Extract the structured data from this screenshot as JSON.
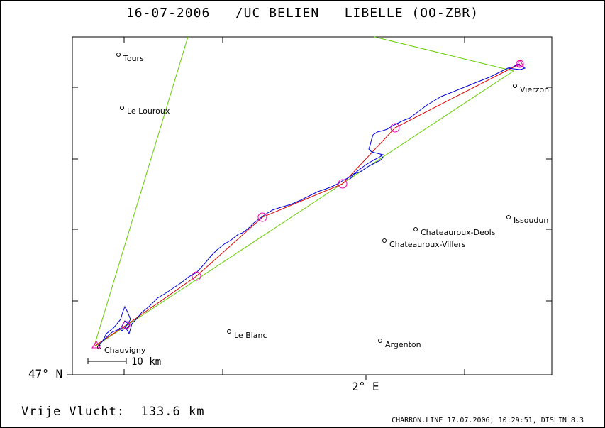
{
  "title": {
    "date": "16-07-2006",
    "club": "/UC BELIEN",
    "glider": "LIBELLE (OO-ZBR)"
  },
  "axis": {
    "latitude_label": "47° N",
    "longitude_label": "2° E"
  },
  "scale": {
    "label": "10 km"
  },
  "cities": [
    {
      "name": "Tours"
    },
    {
      "name": "Le Louroux"
    },
    {
      "name": "Vierzon"
    },
    {
      "name": "Issoudun"
    },
    {
      "name": "Chateauroux-Deols"
    },
    {
      "name": "Chateauroux-Villers"
    },
    {
      "name": "Le Blanc"
    },
    {
      "name": "Argenton"
    },
    {
      "name": "Chauvigny"
    }
  ],
  "summary": {
    "label": "Vrije Vlucht:",
    "value": "133.6 km"
  },
  "footer": "CHARRON.LINE 17.07.2006, 10:29:51, DISLIN 8.3",
  "colors": {
    "track": "#0000dd",
    "task_line": "#dd0000",
    "sector_line": "#66cc00",
    "turnpoint": "#ee00aa",
    "frame": "#000000"
  }
}
